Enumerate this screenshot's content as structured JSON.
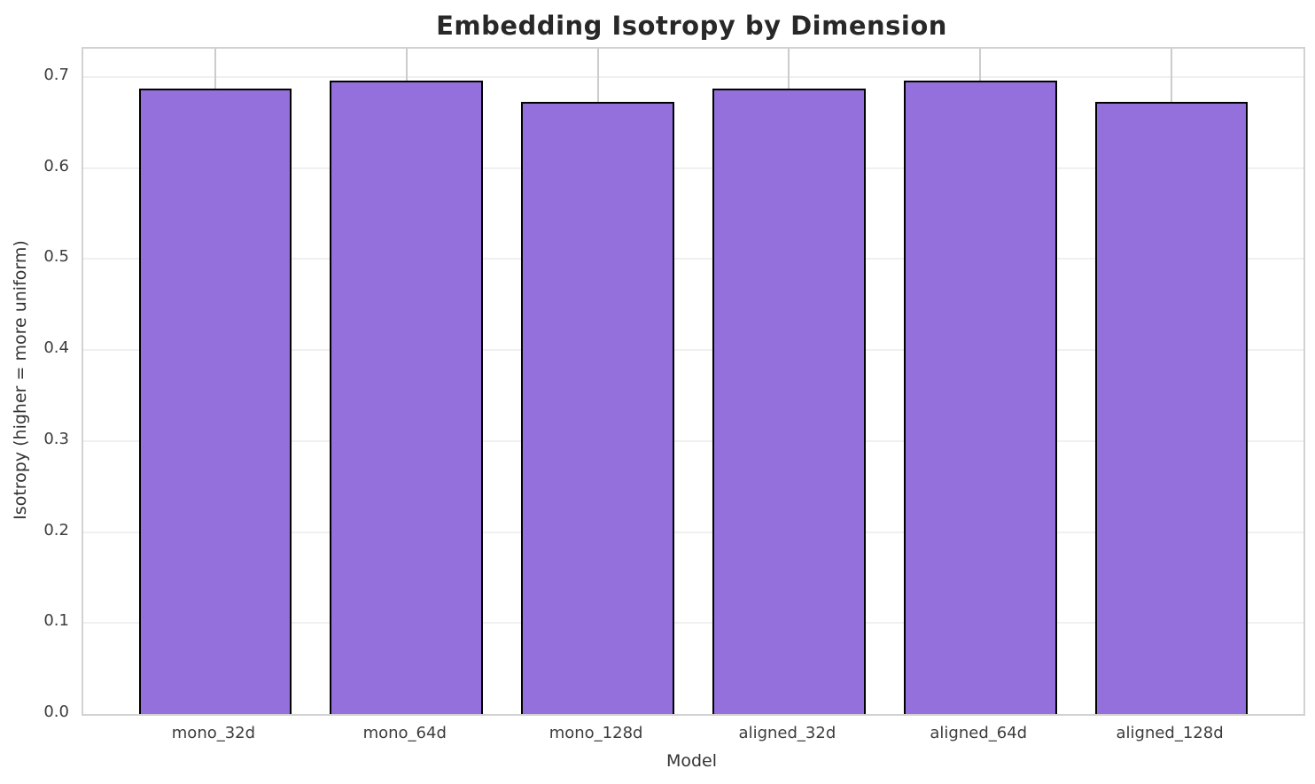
{
  "chart_data": {
    "type": "bar",
    "title": "Embedding Isotropy by Dimension",
    "xlabel": "Model",
    "ylabel": "Isotropy (higher = more uniform)",
    "categories": [
      "mono_32d",
      "mono_64d",
      "mono_128d",
      "aligned_32d",
      "aligned_64d",
      "aligned_128d"
    ],
    "values": [
      0.687,
      0.696,
      0.673,
      0.687,
      0.696,
      0.673
    ],
    "yticks": [
      0.0,
      0.1,
      0.2,
      0.3,
      0.4,
      0.5,
      0.6,
      0.7
    ],
    "ytick_labels": [
      "0.0",
      "0.1",
      "0.2",
      "0.3",
      "0.4",
      "0.5",
      "0.6",
      "0.7"
    ],
    "ylim": [
      0,
      0.731
    ],
    "xlim": [
      -0.69,
      5.69
    ],
    "bar_width": 0.8,
    "grid": true,
    "legend": "none",
    "colors": {
      "bar_fill": "#9370DB",
      "bar_edge": "#000000",
      "grid_horizontal": "#f0f0f0",
      "grid_vertical": "#cccccc",
      "spine": "#d2d2d2",
      "tick_text": "#3d3d3d",
      "title_text": "#282828",
      "background": "#ffffff"
    }
  }
}
